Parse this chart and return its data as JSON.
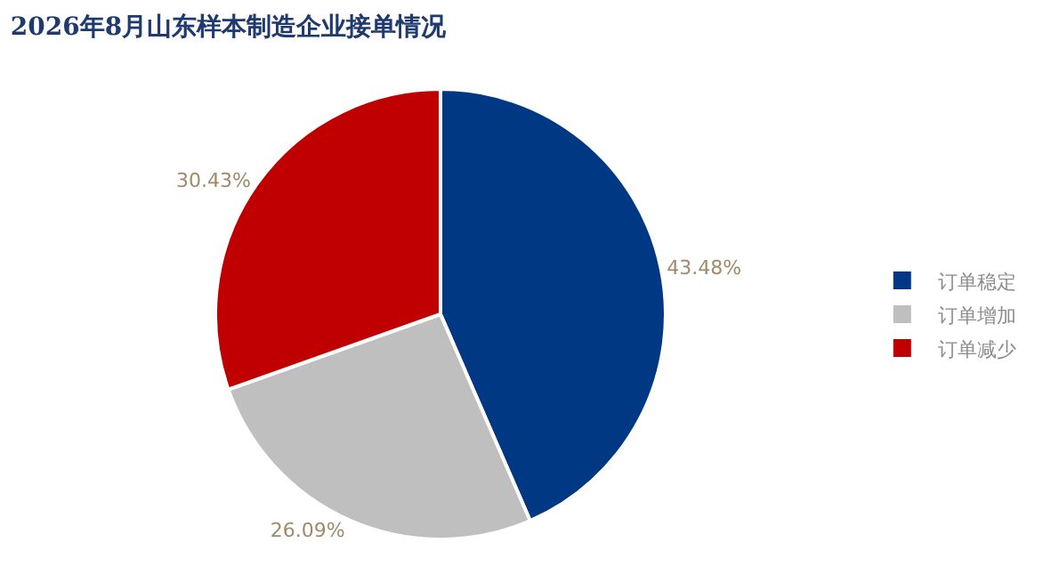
{
  "chart_data": {
    "type": "pie",
    "title": "2026年8月山东样本制造企业接单情况",
    "categories": [
      "订单稳定",
      "订单增加",
      "订单减少"
    ],
    "values": [
      43.48,
      26.09,
      30.43
    ],
    "value_labels": [
      "43.48%",
      "26.09%",
      "30.43%"
    ],
    "colors": [
      "#003884",
      "#bfbfbf",
      "#c00000"
    ],
    "legend": "right"
  }
}
